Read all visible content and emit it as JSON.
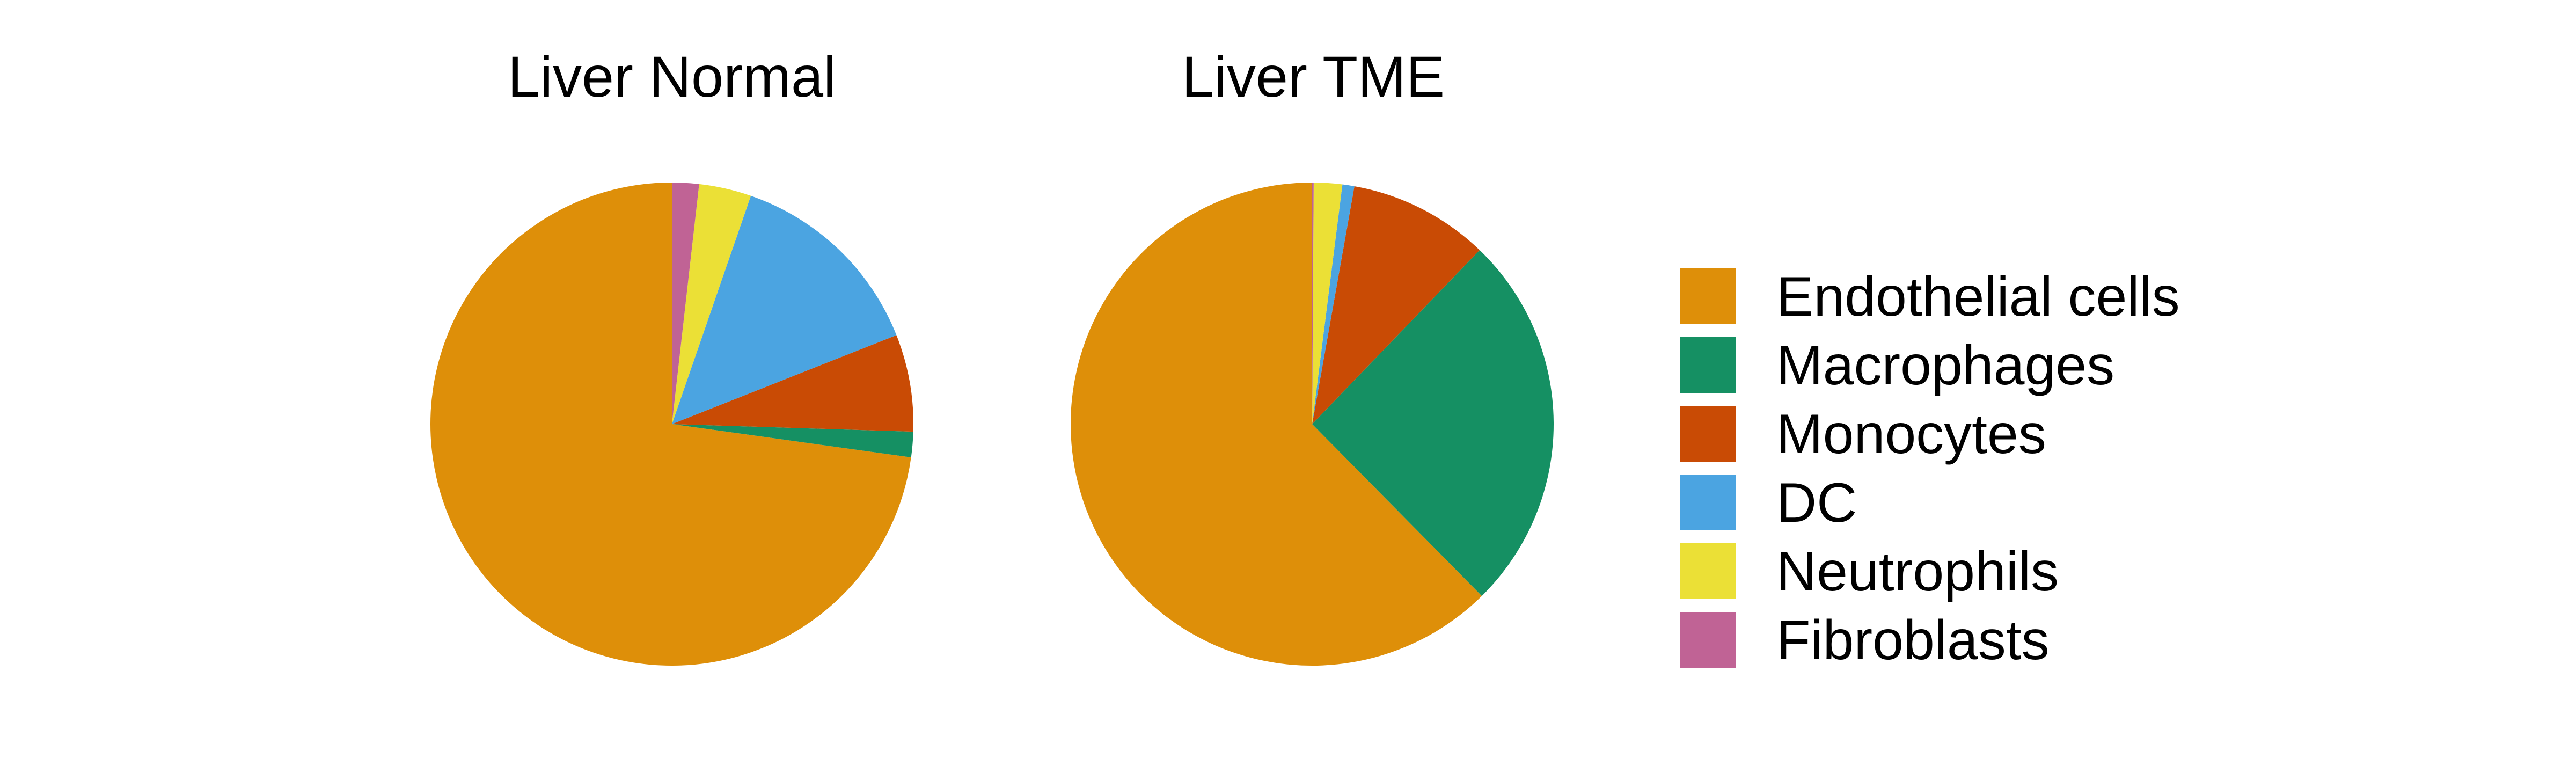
{
  "chart_data": [
    {
      "type": "pie",
      "title": "Liver Normal",
      "categories": [
        "Endothelial cells",
        "Macrophages",
        "Monocytes",
        "DC",
        "Neutrophils",
        "Fibroblasts"
      ],
      "values": [
        72.8,
        1.7,
        6.5,
        13.7,
        3.5,
        1.8
      ],
      "unit": "%",
      "start_angle_deg": 0,
      "direction": "counterclockwise"
    },
    {
      "type": "pie",
      "title": "Liver TME",
      "categories": [
        "Endothelial cells",
        "Macrophages",
        "Monocytes",
        "DC",
        "Neutrophils",
        "Fibroblasts"
      ],
      "values": [
        62.4,
        25.4,
        9.4,
        0.8,
        1.9,
        0.1
      ],
      "unit": "%",
      "start_angle_deg": 0,
      "direction": "counterclockwise"
    }
  ],
  "legend": {
    "placement": "right",
    "items": [
      {
        "label": "Endothelial cells",
        "color": "#DE8F09"
      },
      {
        "label": "Macrophages",
        "color": "#159063"
      },
      {
        "label": "Monocytes",
        "color": "#C94B05"
      },
      {
        "label": "DC",
        "color": "#4BA4E1"
      },
      {
        "label": "Neutrophils",
        "color": "#EBE036"
      },
      {
        "label": "Fibroblasts",
        "color": "#C06395"
      }
    ]
  }
}
